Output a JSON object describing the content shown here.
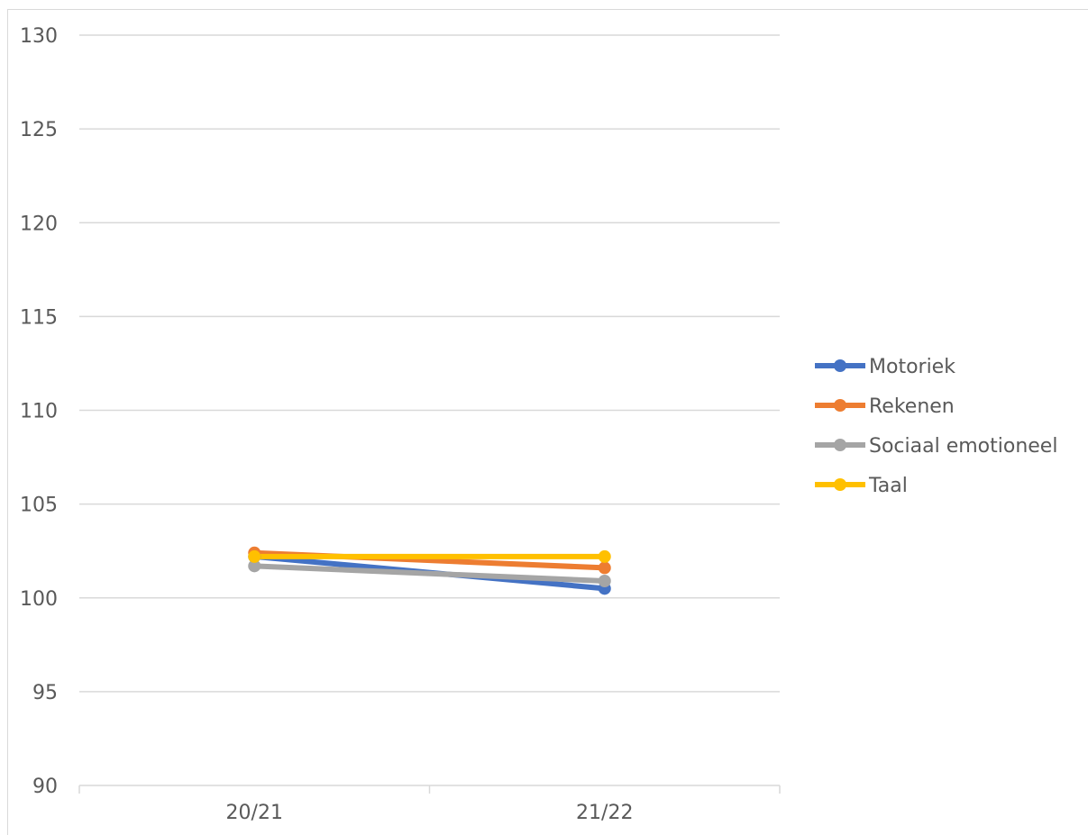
{
  "chart_data": {
    "type": "line",
    "title": "",
    "xlabel": "",
    "ylabel": "",
    "categories": [
      "20/21",
      "21/22"
    ],
    "ylim": [
      90,
      130
    ],
    "yticks": [
      90,
      95,
      100,
      105,
      110,
      115,
      120,
      125,
      130
    ],
    "ytick_labels": [
      "90",
      "95",
      "100",
      "105",
      "110",
      "115",
      "120",
      "125",
      "130"
    ],
    "grid": true,
    "legend_position": "right",
    "series": [
      {
        "name": "Motoriek",
        "values": [
          102.2,
          100.5
        ],
        "color": "#4472C4"
      },
      {
        "name": "Rekenen",
        "values": [
          102.4,
          101.6
        ],
        "color": "#ED7D31"
      },
      {
        "name": "Sociaal emotioneel",
        "values": [
          101.7,
          100.9
        ],
        "color": "#A5A5A5"
      },
      {
        "name": "Taal",
        "values": [
          102.2,
          102.2
        ],
        "color": "#FFC000"
      }
    ]
  }
}
